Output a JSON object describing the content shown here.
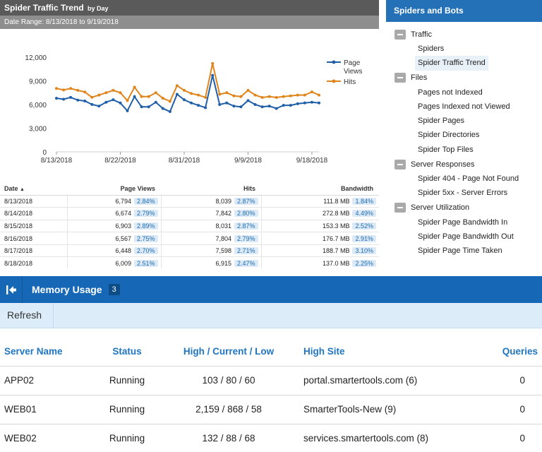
{
  "report": {
    "title": "Spider Traffic Trend",
    "title_suffix": "by Day",
    "date_range": "Date Range: 8/13/2018 to 9/19/2018"
  },
  "chart_data": {
    "type": "line",
    "x": [
      "8/13/2018",
      "8/14/2018",
      "8/15/2018",
      "8/16/2018",
      "8/17/2018",
      "8/18/2018",
      "8/19/2018",
      "8/20/2018",
      "8/21/2018",
      "8/22/2018",
      "8/23/2018",
      "8/24/2018",
      "8/25/2018",
      "8/26/2018",
      "8/27/2018",
      "8/28/2018",
      "8/29/2018",
      "8/30/2018",
      "8/31/2018",
      "9/1/2018",
      "9/2/2018",
      "9/3/2018",
      "9/4/2018",
      "9/5/2018",
      "9/6/2018",
      "9/7/2018",
      "9/8/2018",
      "9/9/2018",
      "9/10/2018",
      "9/11/2018",
      "9/12/2018",
      "9/13/2018",
      "9/14/2018",
      "9/15/2018",
      "9/16/2018",
      "9/17/2018",
      "9/18/2018",
      "9/19/2018"
    ],
    "x_tick_labels": [
      "8/13/2018",
      "8/22/2018",
      "8/31/2018",
      "9/9/2018",
      "9/18/2018"
    ],
    "x_tick_indices": [
      0,
      9,
      18,
      27,
      36
    ],
    "y_ticks": [
      "0",
      "3,000",
      "6,000",
      "9,000",
      "12,000"
    ],
    "y_tick_values": [
      0,
      3000,
      6000,
      9000,
      12000
    ],
    "ylim": [
      0,
      12000
    ],
    "series": [
      {
        "name": "Page Views",
        "color": "#1f5fa8",
        "values": [
          6794,
          6674,
          6903,
          6567,
          6448,
          6009,
          5800,
          6300,
          6600,
          6200,
          5200,
          7000,
          5700,
          5700,
          6300,
          5500,
          5100,
          7300,
          6600,
          6200,
          5900,
          5600,
          9700,
          6000,
          6200,
          5800,
          5700,
          6500,
          6000,
          5700,
          5800,
          5500,
          5900,
          5900,
          6100,
          6200,
          6300,
          6200
        ]
      },
      {
        "name": "Hits",
        "color": "#e0851c",
        "values": [
          8039,
          7842,
          8031,
          7804,
          7598,
          6915,
          7200,
          7500,
          7800,
          7500,
          6500,
          8200,
          7000,
          7000,
          7500,
          6800,
          6400,
          8400,
          7800,
          7400,
          7200,
          6900,
          11200,
          7300,
          7500,
          7100,
          7000,
          7800,
          7200,
          6900,
          7000,
          6900,
          7000,
          7100,
          7200,
          7200,
          7600,
          7200
        ]
      }
    ],
    "legend_position": "right"
  },
  "table": {
    "headers": {
      "date": "Date",
      "page_views": "Page Views",
      "hits": "Hits",
      "bandwidth": "Bandwidth"
    },
    "rows": [
      {
        "date": "8/13/2018",
        "page_views": "6,794",
        "pv_pct": "2.84%",
        "hits": "8,039",
        "hits_pct": "2.87%",
        "bandwidth": "111.8 MB",
        "bw_pct": "1.84%"
      },
      {
        "date": "8/14/2018",
        "page_views": "6,674",
        "pv_pct": "2.79%",
        "hits": "7,842",
        "hits_pct": "2.80%",
        "bandwidth": "272.8 MB",
        "bw_pct": "4.49%"
      },
      {
        "date": "8/15/2018",
        "page_views": "6,903",
        "pv_pct": "2.89%",
        "hits": "8,031",
        "hits_pct": "2.87%",
        "bandwidth": "153.3 MB",
        "bw_pct": "2.52%"
      },
      {
        "date": "8/16/2018",
        "page_views": "6,567",
        "pv_pct": "2.75%",
        "hits": "7,804",
        "hits_pct": "2.79%",
        "bandwidth": "176.7 MB",
        "bw_pct": "2.91%"
      },
      {
        "date": "8/17/2018",
        "page_views": "6,448",
        "pv_pct": "2.70%",
        "hits": "7,598",
        "hits_pct": "2.71%",
        "bandwidth": "188.7 MB",
        "bw_pct": "3.10%"
      },
      {
        "date": "8/18/2018",
        "page_views": "6,009",
        "pv_pct": "2.51%",
        "hits": "6,915",
        "hits_pct": "2.47%",
        "bandwidth": "137.0 MB",
        "bw_pct": "2.25%"
      }
    ]
  },
  "sidebar": {
    "title": "Spiders and Bots",
    "groups": [
      {
        "label": "Traffic",
        "items": [
          "Spiders",
          "Spider Traffic Trend"
        ]
      },
      {
        "label": "Files",
        "items": [
          "Pages not Indexed",
          "Pages Indexed not Viewed",
          "Spider Pages",
          "Spider Directories",
          "Spider Top Files"
        ]
      },
      {
        "label": "Server Responses",
        "items": [
          "Spider 404 - Page Not Found",
          "Spider 5xx - Server Errors"
        ]
      },
      {
        "label": "Server Utilization",
        "items": [
          "Spider Page Bandwidth In",
          "Spider Page Bandwidth Out",
          "Spider Page Time Taken"
        ]
      }
    ],
    "selected": "Spider Traffic Trend"
  },
  "memory": {
    "title": "Memory Usage",
    "count": "3",
    "refresh_label": "Refresh",
    "headers": {
      "server": "Server Name",
      "status": "Status",
      "hlc": "High / Current / Low",
      "site": "High Site",
      "queries": "Queries"
    },
    "rows": [
      {
        "server": "APP02",
        "status": "Running",
        "hlc": "103 / 80 / 60",
        "site": "portal.smartertools.com (6)",
        "queries": "0"
      },
      {
        "server": "WEB01",
        "status": "Running",
        "hlc": "2,159 / 868 / 58",
        "site": "SmarterTools-New (9)",
        "queries": "0"
      },
      {
        "server": "WEB02",
        "status": "Running",
        "hlc": "132 / 88 / 68",
        "site": "services.smartertools.com (8)",
        "queries": "0"
      }
    ]
  },
  "colors": {
    "header_blue": "#1668b6",
    "sidebar_blue": "#2571b8",
    "toolbar": "#dcecf9",
    "link_blue": "#1f75c1"
  },
  "icons": {
    "group_toggle": "minus-box-icon",
    "collapse": "collapse-left-icon"
  }
}
